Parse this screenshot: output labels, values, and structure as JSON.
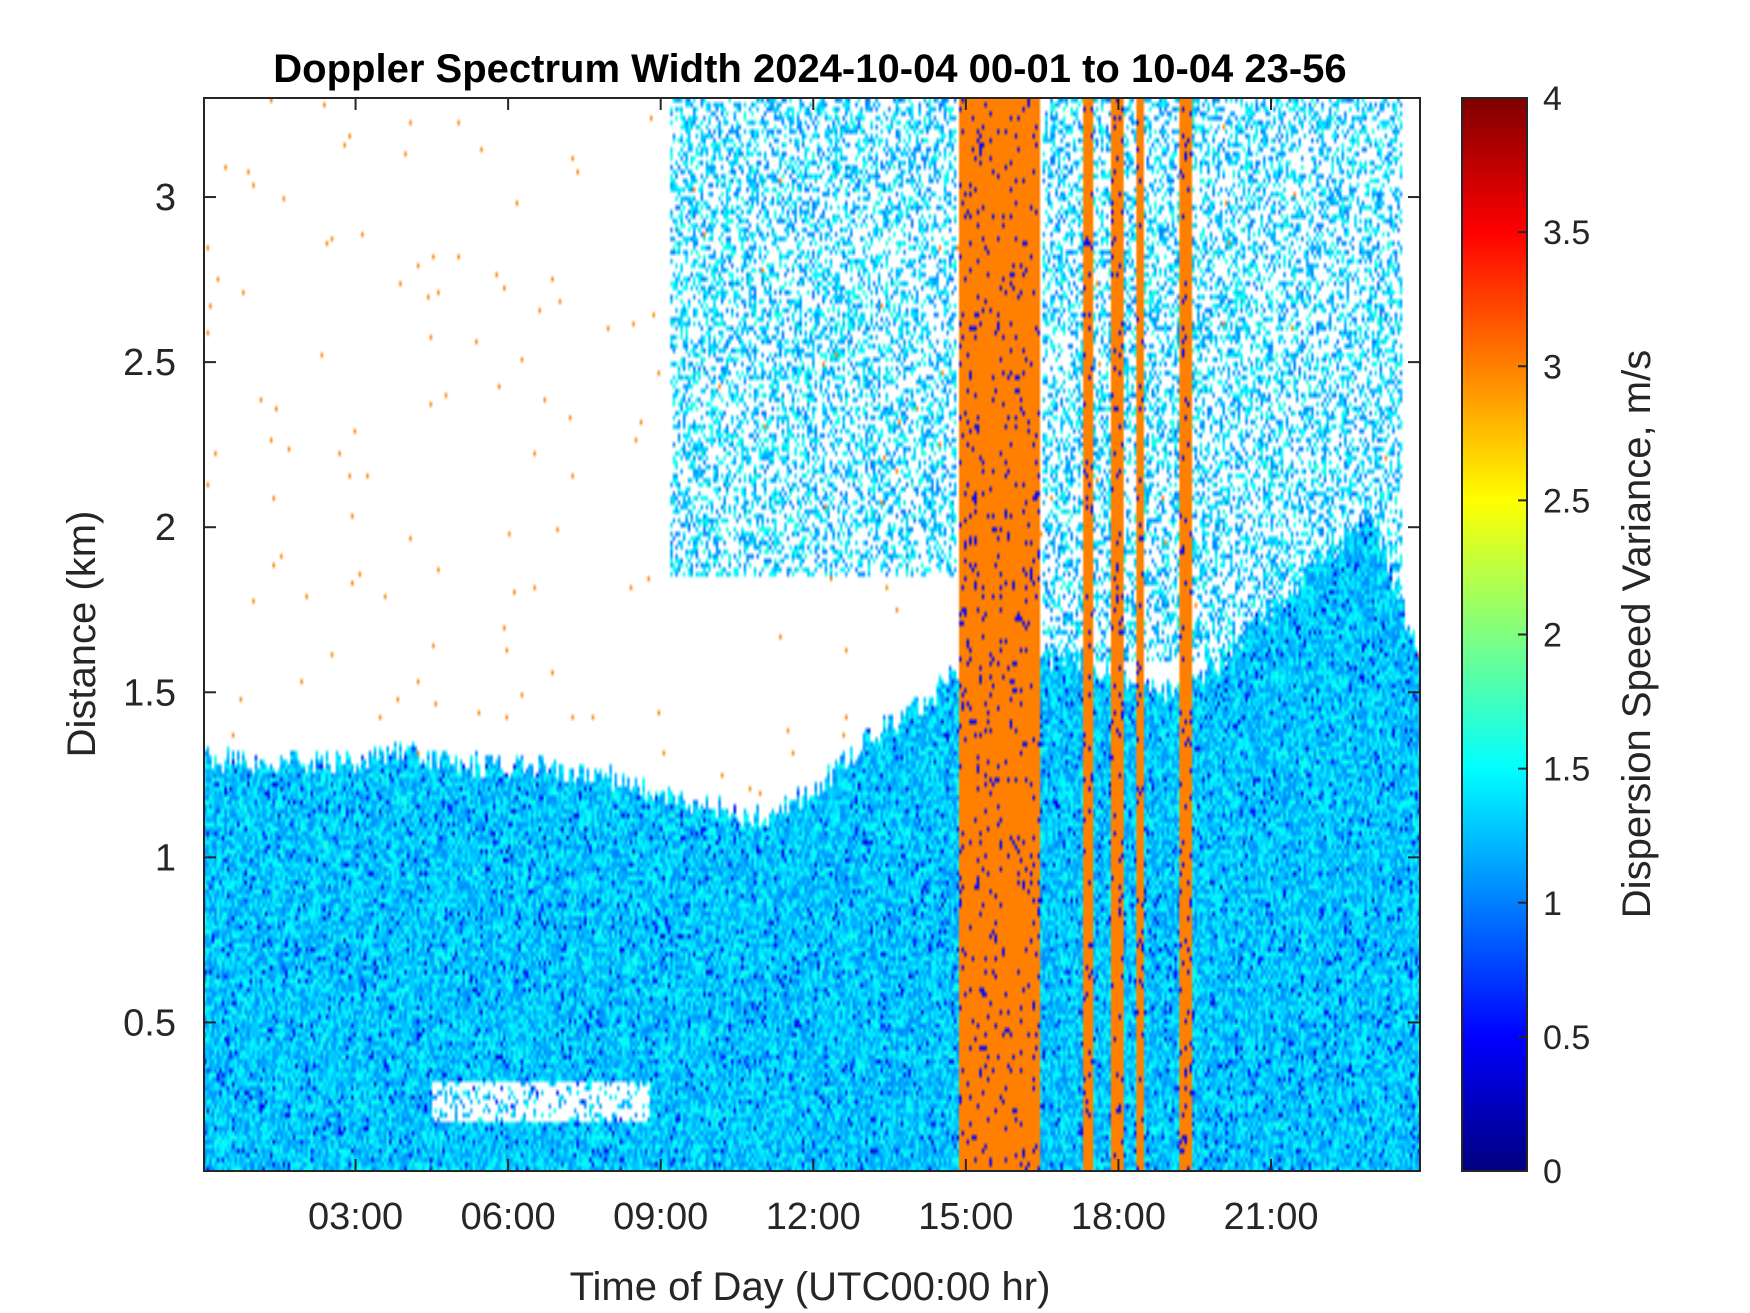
{
  "chart_data": {
    "type": "heatmap",
    "title": "Doppler Spectrum Width 2024-10-04 00-01 to 10-04 23-56",
    "xlabel": "Time of Day (UTC00:00 hr)",
    "ylabel": "Distance (km)",
    "colorbar_label": "Dispersion Speed Variance, m/s",
    "x_unit": "hours UTC",
    "xlim": [
      0.02,
      23.93
    ],
    "ylim": [
      0.05,
      3.3
    ],
    "x_ticks": [
      {
        "value": 3,
        "label": "03:00"
      },
      {
        "value": 6,
        "label": "06:00"
      },
      {
        "value": 9,
        "label": "09:00"
      },
      {
        "value": 12,
        "label": "12:00"
      },
      {
        "value": 15,
        "label": "15:00"
      },
      {
        "value": 18,
        "label": "18:00"
      },
      {
        "value": 21,
        "label": "21:00"
      }
    ],
    "y_ticks": [
      {
        "value": 0.5,
        "label": "0.5"
      },
      {
        "value": 1,
        "label": "1"
      },
      {
        "value": 1.5,
        "label": "1.5"
      },
      {
        "value": 2,
        "label": "2"
      },
      {
        "value": 2.5,
        "label": "2.5"
      },
      {
        "value": 3,
        "label": "3"
      }
    ],
    "colorbar": {
      "colormap": "jet",
      "clim": [
        0,
        4
      ],
      "ticks": [
        {
          "value": 0,
          "label": "0"
        },
        {
          "value": 0.5,
          "label": "0.5"
        },
        {
          "value": 1,
          "label": "1"
        },
        {
          "value": 1.5,
          "label": "1.5"
        },
        {
          "value": 2,
          "label": "2"
        },
        {
          "value": 2.5,
          "label": "2.5"
        },
        {
          "value": 3,
          "label": "3"
        },
        {
          "value": 3.5,
          "label": "3.5"
        },
        {
          "value": 4,
          "label": "4"
        }
      ]
    },
    "grid": false,
    "typical_values": {
      "boundary_layer_spectrum_width": 1.3,
      "saturated_band_value": 3.0
    },
    "saturated_time_bands": [
      [
        14.85,
        16.45
      ],
      [
        17.3,
        17.5
      ],
      [
        17.85,
        18.1
      ],
      [
        18.35,
        18.5
      ],
      [
        19.2,
        19.45
      ]
    ],
    "echo_top_profile": {
      "times": [
        0,
        1,
        2,
        3,
        4,
        5,
        6,
        7,
        8,
        9,
        10,
        11,
        12,
        13,
        14,
        14.8,
        16.5,
        17,
        18,
        19,
        20,
        21,
        22,
        23,
        23.9
      ],
      "heights": [
        1.3,
        1.3,
        1.28,
        1.3,
        1.32,
        1.28,
        1.28,
        1.26,
        1.24,
        1.2,
        1.15,
        1.12,
        1.2,
        1.35,
        1.45,
        1.55,
        1.6,
        1.62,
        1.55,
        1.5,
        1.6,
        1.75,
        1.9,
        2.05,
        1.6
      ]
    },
    "cloud_layers": [
      {
        "t_start": 9.2,
        "t_end": 14.8,
        "h_bottom": 1.85,
        "h_top": 3.3
      },
      {
        "t_start": 16.5,
        "t_end": 23.6,
        "h_bottom": 1.6,
        "h_top": 3.3
      }
    ]
  }
}
